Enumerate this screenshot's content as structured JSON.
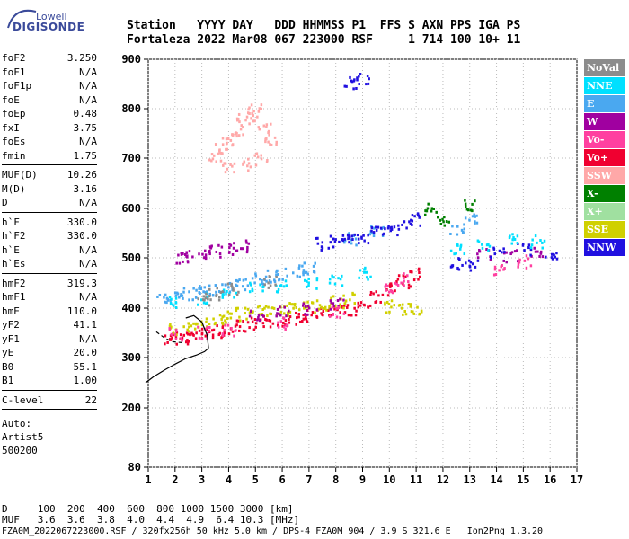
{
  "logo": {
    "line1": "Lowell",
    "line2": "DIGISONDE"
  },
  "header": {
    "line1": "Station   YYYY DAY   DDD HHMMSS P1  FFS S AXN PPS IGA PS",
    "line2": "Fortaleza 2022 Mar08 067 223000 RSF     1 714 100 10+ 11"
  },
  "params": [
    [
      {
        "k": "foF2",
        "v": "3.250"
      },
      {
        "k": "foF1",
        "v": "N/A"
      },
      {
        "k": "foF1p",
        "v": "N/A"
      },
      {
        "k": "foE",
        "v": "N/A"
      },
      {
        "k": "foEp",
        "v": "0.48"
      },
      {
        "k": "fxI",
        "v": "3.75"
      },
      {
        "k": "foEs",
        "v": "N/A"
      },
      {
        "k": "fmin",
        "v": "1.75"
      }
    ],
    [
      {
        "k": "MUF(D)",
        "v": "10.26"
      },
      {
        "k": "M(D)",
        "v": "3.16"
      },
      {
        "k": "D",
        "v": "N/A"
      }
    ],
    [
      {
        "k": "h`F",
        "v": "330.0"
      },
      {
        "k": "h`F2",
        "v": "330.0"
      },
      {
        "k": "h`E",
        "v": "N/A"
      },
      {
        "k": "h`Es",
        "v": "N/A"
      }
    ],
    [
      {
        "k": "hmF2",
        "v": "319.3"
      },
      {
        "k": "hmF1",
        "v": "N/A"
      },
      {
        "k": "hmE",
        "v": "110.0"
      },
      {
        "k": "yF2",
        "v": "41.1"
      },
      {
        "k": "yF1",
        "v": "N/A"
      },
      {
        "k": "yE",
        "v": "20.0"
      },
      {
        "k": "B0",
        "v": "55.1"
      },
      {
        "k": "B1",
        "v": "1.00"
      }
    ],
    [
      {
        "k": "C-level",
        "v": "22"
      }
    ]
  ],
  "auto": [
    "Auto:",
    "Artist5",
    "500200"
  ],
  "legend": [
    {
      "label": "NoVal",
      "color": "#8c8c8c"
    },
    {
      "label": "NNE",
      "color": "#00e0ff"
    },
    {
      "label": "E",
      "color": "#4aa8f0"
    },
    {
      "label": "W",
      "color": "#a000a0"
    },
    {
      "label": "Vo-",
      "color": "#ff40a0"
    },
    {
      "label": "Vo+",
      "color": "#f00030"
    },
    {
      "label": "SSW",
      "color": "#ffa8a8"
    },
    {
      "label": "X-",
      "color": "#008000"
    },
    {
      "label": "X+",
      "color": "#a0e0a0"
    },
    {
      "label": "SSE",
      "color": "#d0d000"
    },
    {
      "label": "NNW",
      "color": "#2010e0"
    }
  ],
  "bottom": {
    "d_line": "D     100  200  400  600  800 1000 1500 3000 [km]",
    "muf_line": "MUF   3.6  3.6  3.8  4.0  4.4  4.9  6.4 10.3 [MHz]",
    "footer": "FZA0M_2022067223000.RSF / 320fx256h 50 kHz 5.0 km / DPS-4 FZA0M 904 / 3.9 S 321.6 E   Ion2Png 1.3.20"
  },
  "chart_data": {
    "type": "scatter",
    "xlim": [
      1,
      17
    ],
    "ylim": [
      80,
      900
    ],
    "x_ticks": [
      "1",
      "2",
      "3",
      "4",
      "5",
      "6",
      "7",
      "8",
      "9",
      "10",
      "11",
      "12",
      "13",
      "14",
      "15",
      "16",
      "17"
    ],
    "y_ticks": [
      "80",
      "200",
      "300",
      "400",
      "500",
      "600",
      "700",
      "800",
      "900"
    ],
    "grid": true,
    "profile": [
      [
        0.9,
        250
      ],
      [
        1.2,
        262
      ],
      [
        1.6,
        275
      ],
      [
        2.0,
        287
      ],
      [
        2.4,
        298
      ],
      [
        2.8,
        305
      ],
      [
        3.1,
        312
      ],
      [
        3.25,
        319
      ]
    ],
    "profile_upper": [
      [
        3.25,
        319
      ],
      [
        3.2,
        345
      ],
      [
        3.0,
        372
      ],
      [
        2.7,
        385
      ],
      [
        2.4,
        380
      ]
    ],
    "dashed_profile": [
      [
        1.3,
        352
      ],
      [
        1.6,
        340
      ],
      [
        1.9,
        332
      ],
      [
        2.3,
        330
      ]
    ],
    "traces": [
      {
        "name": "Vo+",
        "color": "#f00030",
        "pts": [
          [
            1.8,
            340
          ],
          [
            2.2,
            342
          ],
          [
            2.6,
            345
          ],
          [
            3.0,
            350
          ],
          [
            3.5,
            355
          ],
          [
            4.0,
            360
          ],
          [
            4.5,
            365
          ],
          [
            5.0,
            370
          ],
          [
            5.5,
            375
          ],
          [
            6.0,
            378
          ],
          [
            6.5,
            382
          ],
          [
            7.0,
            386
          ],
          [
            7.5,
            390
          ],
          [
            8.0,
            394
          ],
          [
            8.5,
            400
          ],
          [
            9.0,
            410
          ],
          [
            9.5,
            425
          ],
          [
            10.0,
            440
          ],
          [
            10.5,
            455
          ],
          [
            11.0,
            470
          ]
        ]
      },
      {
        "name": "SSE",
        "color": "#d0d000",
        "pts": [
          [
            2.0,
            360
          ],
          [
            2.5,
            365
          ],
          [
            3.0,
            370
          ],
          [
            3.5,
            378
          ],
          [
            4.0,
            385
          ],
          [
            4.5,
            390
          ],
          [
            5.0,
            395
          ],
          [
            5.5,
            398
          ],
          [
            6.0,
            400
          ],
          [
            6.5,
            402
          ],
          [
            7.0,
            405
          ],
          [
            7.5,
            408
          ],
          [
            8.0,
            415
          ],
          [
            8.5,
            420
          ],
          [
            10.0,
            405
          ],
          [
            10.5,
            400
          ],
          [
            11.0,
            402
          ]
        ]
      },
      {
        "name": "E",
        "color": "#4aa8f0",
        "pts": [
          [
            1.5,
            420
          ],
          [
            2.0,
            425
          ],
          [
            2.5,
            430
          ],
          [
            3.0,
            435
          ],
          [
            3.5,
            440
          ],
          [
            4.0,
            445
          ],
          [
            4.5,
            450
          ],
          [
            5.0,
            460
          ],
          [
            5.5,
            465
          ],
          [
            6.0,
            470
          ],
          [
            6.5,
            475
          ],
          [
            7.0,
            480
          ],
          [
            8.5,
            540
          ],
          [
            9.5,
            555
          ],
          [
            12.5,
            560
          ],
          [
            13.0,
            580
          ]
        ]
      },
      {
        "name": "W",
        "color": "#a000a0",
        "pts": [
          [
            2.2,
            500
          ],
          [
            2.6,
            505
          ],
          [
            3.0,
            510
          ],
          [
            3.5,
            515
          ],
          [
            4.0,
            520
          ],
          [
            4.5,
            525
          ],
          [
            5.0,
            390
          ],
          [
            6.0,
            395
          ],
          [
            7.0,
            400
          ],
          [
            8.0,
            410
          ],
          [
            13.5,
            510
          ],
          [
            14.5,
            505
          ],
          [
            15.5,
            510
          ]
        ]
      },
      {
        "name": "NNW",
        "color": "#2010e0",
        "pts": [
          [
            7.5,
            530
          ],
          [
            8.0,
            535
          ],
          [
            8.5,
            540
          ],
          [
            9.0,
            545
          ],
          [
            9.5,
            555
          ],
          [
            10.0,
            560
          ],
          [
            10.5,
            570
          ],
          [
            11.0,
            580
          ],
          [
            12.5,
            490
          ],
          [
            13.0,
            485
          ],
          [
            14.0,
            510
          ],
          [
            15.0,
            520
          ],
          [
            16.0,
            510
          ],
          [
            9.0,
            860
          ],
          [
            8.5,
            855
          ]
        ]
      },
      {
        "name": "SSW",
        "color": "#ffa8a8",
        "pts": [
          [
            3.5,
            700
          ],
          [
            3.7,
            720
          ],
          [
            4.0,
            740
          ],
          [
            4.3,
            760
          ],
          [
            4.5,
            780
          ],
          [
            4.8,
            790
          ],
          [
            5.0,
            800
          ],
          [
            5.3,
            760
          ],
          [
            5.5,
            740
          ],
          [
            4.0,
            680
          ],
          [
            4.6,
            690
          ],
          [
            5.2,
            700
          ]
        ]
      },
      {
        "name": "NNE",
        "color": "#00e0ff",
        "pts": [
          [
            2.0,
            415
          ],
          [
            3.0,
            420
          ],
          [
            4.0,
            430
          ],
          [
            5.0,
            440
          ],
          [
            6.0,
            445
          ],
          [
            7.0,
            450
          ],
          [
            8.0,
            455
          ],
          [
            9.0,
            470
          ],
          [
            12.5,
            520
          ],
          [
            13.5,
            530
          ],
          [
            14.5,
            540
          ],
          [
            15.5,
            535
          ]
        ]
      },
      {
        "name": "Vo-",
        "color": "#ff40a0",
        "pts": [
          [
            2.0,
            350
          ],
          [
            3.0,
            352
          ],
          [
            4.0,
            358
          ],
          [
            6.0,
            372
          ],
          [
            8.0,
            392
          ],
          [
            10.0,
            445
          ],
          [
            10.5,
            460
          ],
          [
            14.0,
            480
          ],
          [
            15.0,
            495
          ]
        ]
      },
      {
        "name": "X-",
        "color": "#008000",
        "pts": [
          [
            11.5,
            600
          ],
          [
            12.0,
            580
          ],
          [
            13.0,
            610
          ]
        ]
      },
      {
        "name": "NoVal",
        "color": "#8c8c8c",
        "pts": [
          [
            3.0,
            420
          ],
          [
            3.5,
            430
          ],
          [
            4.2,
            440
          ],
          [
            5.5,
            455
          ]
        ]
      }
    ]
  }
}
